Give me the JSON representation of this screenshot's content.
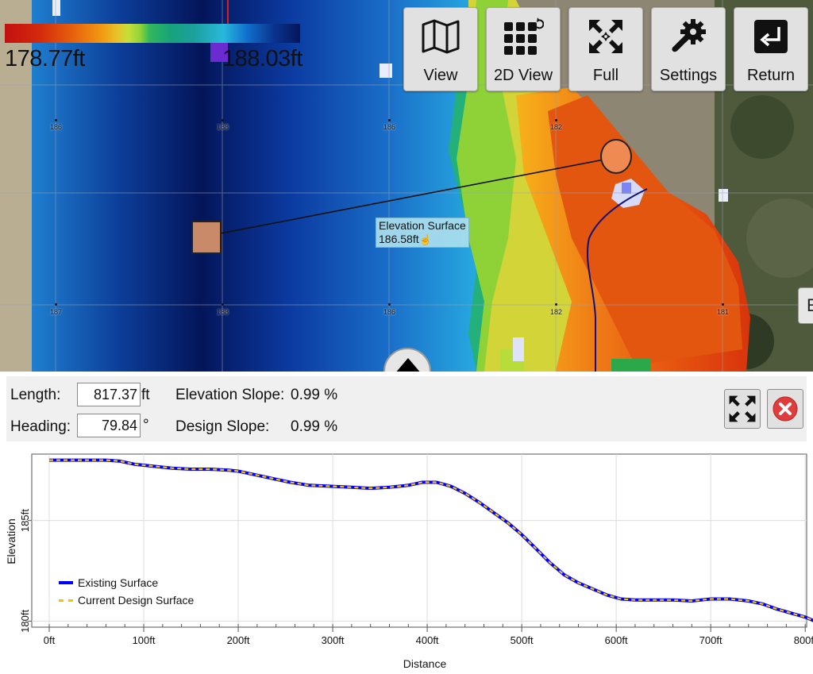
{
  "map": {
    "legend": {
      "min": "178.77ft",
      "max": "188.03ft"
    },
    "toolbar": [
      {
        "id": "view",
        "label": "View",
        "icon": "map-icon"
      },
      {
        "id": "2dview",
        "label": "2D View",
        "icon": "grid-icon"
      },
      {
        "id": "full",
        "label": "Full",
        "icon": "expand-icon"
      },
      {
        "id": "settings",
        "label": "Settings",
        "icon": "gear-wrench-icon"
      },
      {
        "id": "return",
        "label": "Return",
        "icon": "return-icon"
      }
    ],
    "grid_labels_top": [
      "186",
      "188",
      "186",
      "182"
    ],
    "grid_labels_bottom": [
      "187",
      "188",
      "186",
      "182",
      "181"
    ],
    "tooltip": {
      "title": "Elevation Surface",
      "value": "186.58ft"
    }
  },
  "panel": {
    "length_label": "Length:",
    "length_value": "817.37",
    "length_unit": "ft",
    "heading_label": "Heading:",
    "heading_value": "79.84",
    "heading_unit": "°",
    "elev_slope_label": "Elevation Slope:",
    "elev_slope_value": "0.99 %",
    "design_slope_label": "Design Slope:",
    "design_slope_value": "0.99 %"
  },
  "chart_data": {
    "type": "line",
    "xlabel": "Distance",
    "ylabel": "Elevation",
    "xlim": [
      0,
      820
    ],
    "ylim": [
      179.7,
      188.3
    ],
    "x_ticks": [
      "0ft",
      "100ft",
      "200ft",
      "300ft",
      "400ft",
      "500ft",
      "600ft",
      "700ft",
      "800ft"
    ],
    "y_ticks": [
      "180ft",
      "185ft"
    ],
    "x_tick_values": [
      0,
      100,
      200,
      300,
      400,
      500,
      600,
      700,
      800
    ],
    "y_tick_values": [
      180,
      185
    ],
    "grid": true,
    "legend_position": "bottom-left",
    "x": [
      0,
      20,
      40,
      60,
      75,
      90,
      110,
      130,
      150,
      170,
      190,
      200,
      215,
      235,
      255,
      275,
      300,
      320,
      340,
      360,
      380,
      395,
      410,
      425,
      440,
      455,
      470,
      485,
      500,
      515,
      530,
      545,
      560,
      575,
      590,
      605,
      620,
      640,
      660,
      680,
      700,
      720,
      740,
      755,
      770,
      785,
      800,
      810,
      815
    ],
    "series": [
      {
        "name": "Existing Surface",
        "color": "#0000ff",
        "values": [
          188.0,
          188.0,
          188.0,
          188.0,
          187.95,
          187.8,
          187.7,
          187.6,
          187.55,
          187.55,
          187.5,
          187.45,
          187.3,
          187.1,
          186.9,
          186.75,
          186.7,
          186.65,
          186.6,
          186.65,
          186.75,
          186.9,
          186.9,
          186.7,
          186.35,
          185.9,
          185.4,
          184.9,
          184.3,
          183.6,
          182.9,
          182.3,
          181.9,
          181.6,
          181.3,
          181.1,
          181.05,
          181.05,
          181.05,
          181.0,
          181.1,
          181.1,
          181.0,
          180.85,
          180.6,
          180.4,
          180.2,
          180.0,
          179.9
        ]
      },
      {
        "name": "Current Design Surface",
        "color": "#f5c400",
        "dashed": true,
        "values": [
          188.0,
          188.0,
          188.0,
          188.0,
          187.95,
          187.8,
          187.7,
          187.6,
          187.55,
          187.55,
          187.5,
          187.45,
          187.3,
          187.1,
          186.9,
          186.75,
          186.7,
          186.65,
          186.6,
          186.65,
          186.75,
          186.9,
          186.9,
          186.7,
          186.35,
          185.9,
          185.4,
          184.9,
          184.3,
          183.6,
          182.9,
          182.3,
          181.9,
          181.6,
          181.3,
          181.1,
          181.05,
          181.05,
          181.05,
          181.0,
          181.1,
          181.1,
          181.0,
          180.85,
          180.6,
          180.4,
          180.2,
          180.0,
          179.9
        ]
      }
    ]
  }
}
